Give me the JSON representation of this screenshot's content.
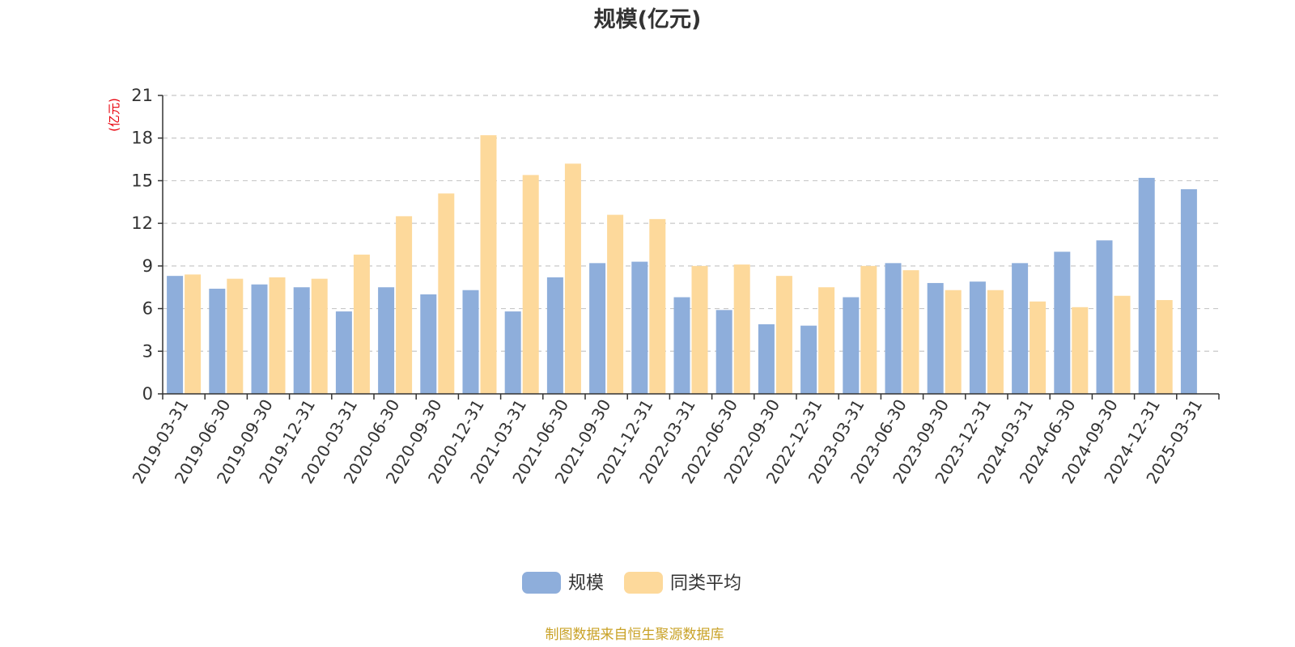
{
  "chart_data": {
    "type": "bar",
    "title": "规模(亿元)",
    "ylabel": "(亿元)",
    "ylim": [
      0,
      21
    ],
    "yticks": [
      "0",
      "3",
      "6",
      "9",
      "12",
      "15",
      "18",
      "21"
    ],
    "grid": true,
    "legend_position": "bottom-center",
    "categories": [
      "2019-03-31",
      "2019-06-30",
      "2019-09-30",
      "2019-12-31",
      "2020-03-31",
      "2020-06-30",
      "2020-09-30",
      "2020-12-31",
      "2021-03-31",
      "2021-06-30",
      "2021-09-30",
      "2021-12-31",
      "2022-03-31",
      "2022-06-30",
      "2022-09-30",
      "2022-12-31",
      "2023-03-31",
      "2023-06-30",
      "2023-09-30",
      "2023-12-31",
      "2024-03-31",
      "2024-06-30",
      "2024-09-30",
      "2024-12-31",
      "2025-03-31"
    ],
    "series": [
      {
        "name": "规模",
        "color": "#8eaedb",
        "values": [
          8.3,
          7.4,
          7.7,
          7.5,
          5.8,
          7.5,
          7.0,
          7.3,
          5.8,
          8.2,
          9.2,
          9.3,
          6.8,
          5.9,
          4.9,
          4.8,
          6.8,
          9.2,
          7.8,
          7.9,
          9.2,
          10.0,
          10.8,
          15.2,
          14.4
        ]
      },
      {
        "name": "同类平均",
        "color": "#fdd99b",
        "values": [
          8.4,
          8.1,
          8.2,
          8.1,
          9.8,
          12.5,
          14.1,
          18.2,
          15.4,
          16.2,
          12.6,
          12.3,
          9.0,
          9.1,
          8.3,
          7.5,
          9.0,
          8.7,
          7.3,
          7.3,
          6.5,
          6.1,
          6.9,
          6.6,
          null
        ]
      }
    ],
    "source_note": "制图数据来自恒生聚源数据库",
    "unit_color": "#e8000b",
    "source_color": "#c9a227"
  }
}
